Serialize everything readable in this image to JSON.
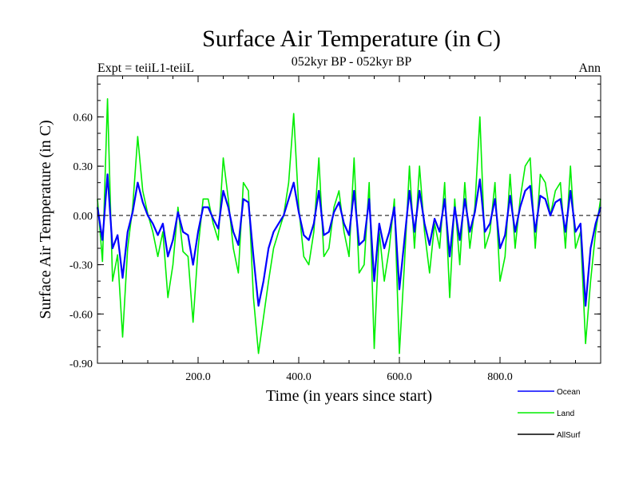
{
  "title": "Surface Air Temperature (in C)",
  "subtitle_left": "Expt = teiiL1-teiiL",
  "subtitle_center": "052kyr BP - 052kyr BP",
  "subtitle_right": "Ann",
  "chart_data": {
    "type": "line",
    "xlabel": "Time (in years since start)",
    "ylabel": "Surface Air Temperature (in C)",
    "xlim": [
      0,
      1000
    ],
    "ylim": [
      -0.9,
      0.85
    ],
    "x_ticks": [
      200,
      400,
      600,
      800
    ],
    "x_tick_labels": [
      "200.0",
      "400.0",
      "600.0",
      "800.0"
    ],
    "y_ticks": [
      -0.9,
      -0.6,
      -0.3,
      0.0,
      0.3,
      0.6
    ],
    "y_tick_labels": [
      "-0.90",
      "-0.60",
      "-0.30",
      "0.00",
      "0.30",
      "0.60"
    ],
    "zero_line": true,
    "legend_position": "bottom-right",
    "series": [
      {
        "name": "Land",
        "color": "#00ee00",
        "x_step": 10,
        "values": [
          0.1,
          -0.28,
          0.71,
          -0.4,
          -0.24,
          -0.74,
          -0.2,
          0.05,
          0.48,
          0.15,
          0.01,
          -0.1,
          -0.25,
          -0.1,
          -0.5,
          -0.3,
          0.05,
          -0.22,
          -0.25,
          -0.65,
          -0.2,
          0.1,
          0.1,
          -0.05,
          -0.15,
          0.35,
          0.1,
          -0.2,
          -0.35,
          0.2,
          0.15,
          -0.5,
          -0.84,
          -0.62,
          -0.4,
          -0.2,
          -0.1,
          0.0,
          0.2,
          0.62,
          0.05,
          -0.25,
          -0.3,
          -0.1,
          0.35,
          -0.25,
          -0.2,
          0.05,
          0.15,
          -0.1,
          -0.25,
          0.35,
          -0.35,
          -0.3,
          0.2,
          -0.81,
          -0.1,
          -0.4,
          -0.2,
          0.1,
          -0.84,
          -0.3,
          0.3,
          -0.2,
          0.3,
          -0.1,
          -0.35,
          -0.05,
          -0.2,
          0.2,
          -0.5,
          0.1,
          -0.3,
          0.2,
          -0.2,
          0.05,
          0.6,
          -0.2,
          -0.1,
          0.2,
          -0.4,
          -0.25,
          0.25,
          -0.2,
          0.1,
          0.3,
          0.35,
          -0.2,
          0.25,
          0.2,
          0.0,
          0.15,
          0.2,
          -0.2,
          0.3,
          -0.2,
          -0.1,
          -0.78,
          -0.4,
          -0.1,
          0.1
        ]
      },
      {
        "name": "Ocean",
        "color": "#0000ff",
        "x_step": 10,
        "values": [
          0.05,
          -0.15,
          0.25,
          -0.2,
          -0.12,
          -0.38,
          -0.1,
          0.02,
          0.2,
          0.08,
          0.0,
          -0.05,
          -0.12,
          -0.05,
          -0.25,
          -0.15,
          0.02,
          -0.1,
          -0.12,
          -0.3,
          -0.1,
          0.05,
          0.05,
          -0.02,
          -0.08,
          0.15,
          0.05,
          -0.1,
          -0.18,
          0.1,
          0.08,
          -0.25,
          -0.55,
          -0.4,
          -0.2,
          -0.1,
          -0.05,
          0.0,
          0.1,
          0.2,
          0.02,
          -0.12,
          -0.15,
          -0.05,
          0.15,
          -0.12,
          -0.1,
          0.02,
          0.08,
          -0.05,
          -0.12,
          0.15,
          -0.18,
          -0.15,
          0.1,
          -0.4,
          -0.05,
          -0.2,
          -0.1,
          0.05,
          -0.45,
          -0.15,
          0.15,
          -0.1,
          0.15,
          -0.05,
          -0.18,
          -0.02,
          -0.1,
          0.1,
          -0.25,
          0.05,
          -0.15,
          0.1,
          -0.1,
          0.02,
          0.22,
          -0.1,
          -0.05,
          0.1,
          -0.2,
          -0.12,
          0.12,
          -0.1,
          0.05,
          0.15,
          0.18,
          -0.1,
          0.12,
          0.1,
          0.0,
          0.08,
          0.1,
          -0.1,
          0.15,
          -0.1,
          -0.05,
          -0.55,
          -0.2,
          -0.05,
          0.05
        ]
      },
      {
        "name": "AllSurf",
        "color": "#000000",
        "x_step": 10,
        "values": []
      }
    ]
  }
}
